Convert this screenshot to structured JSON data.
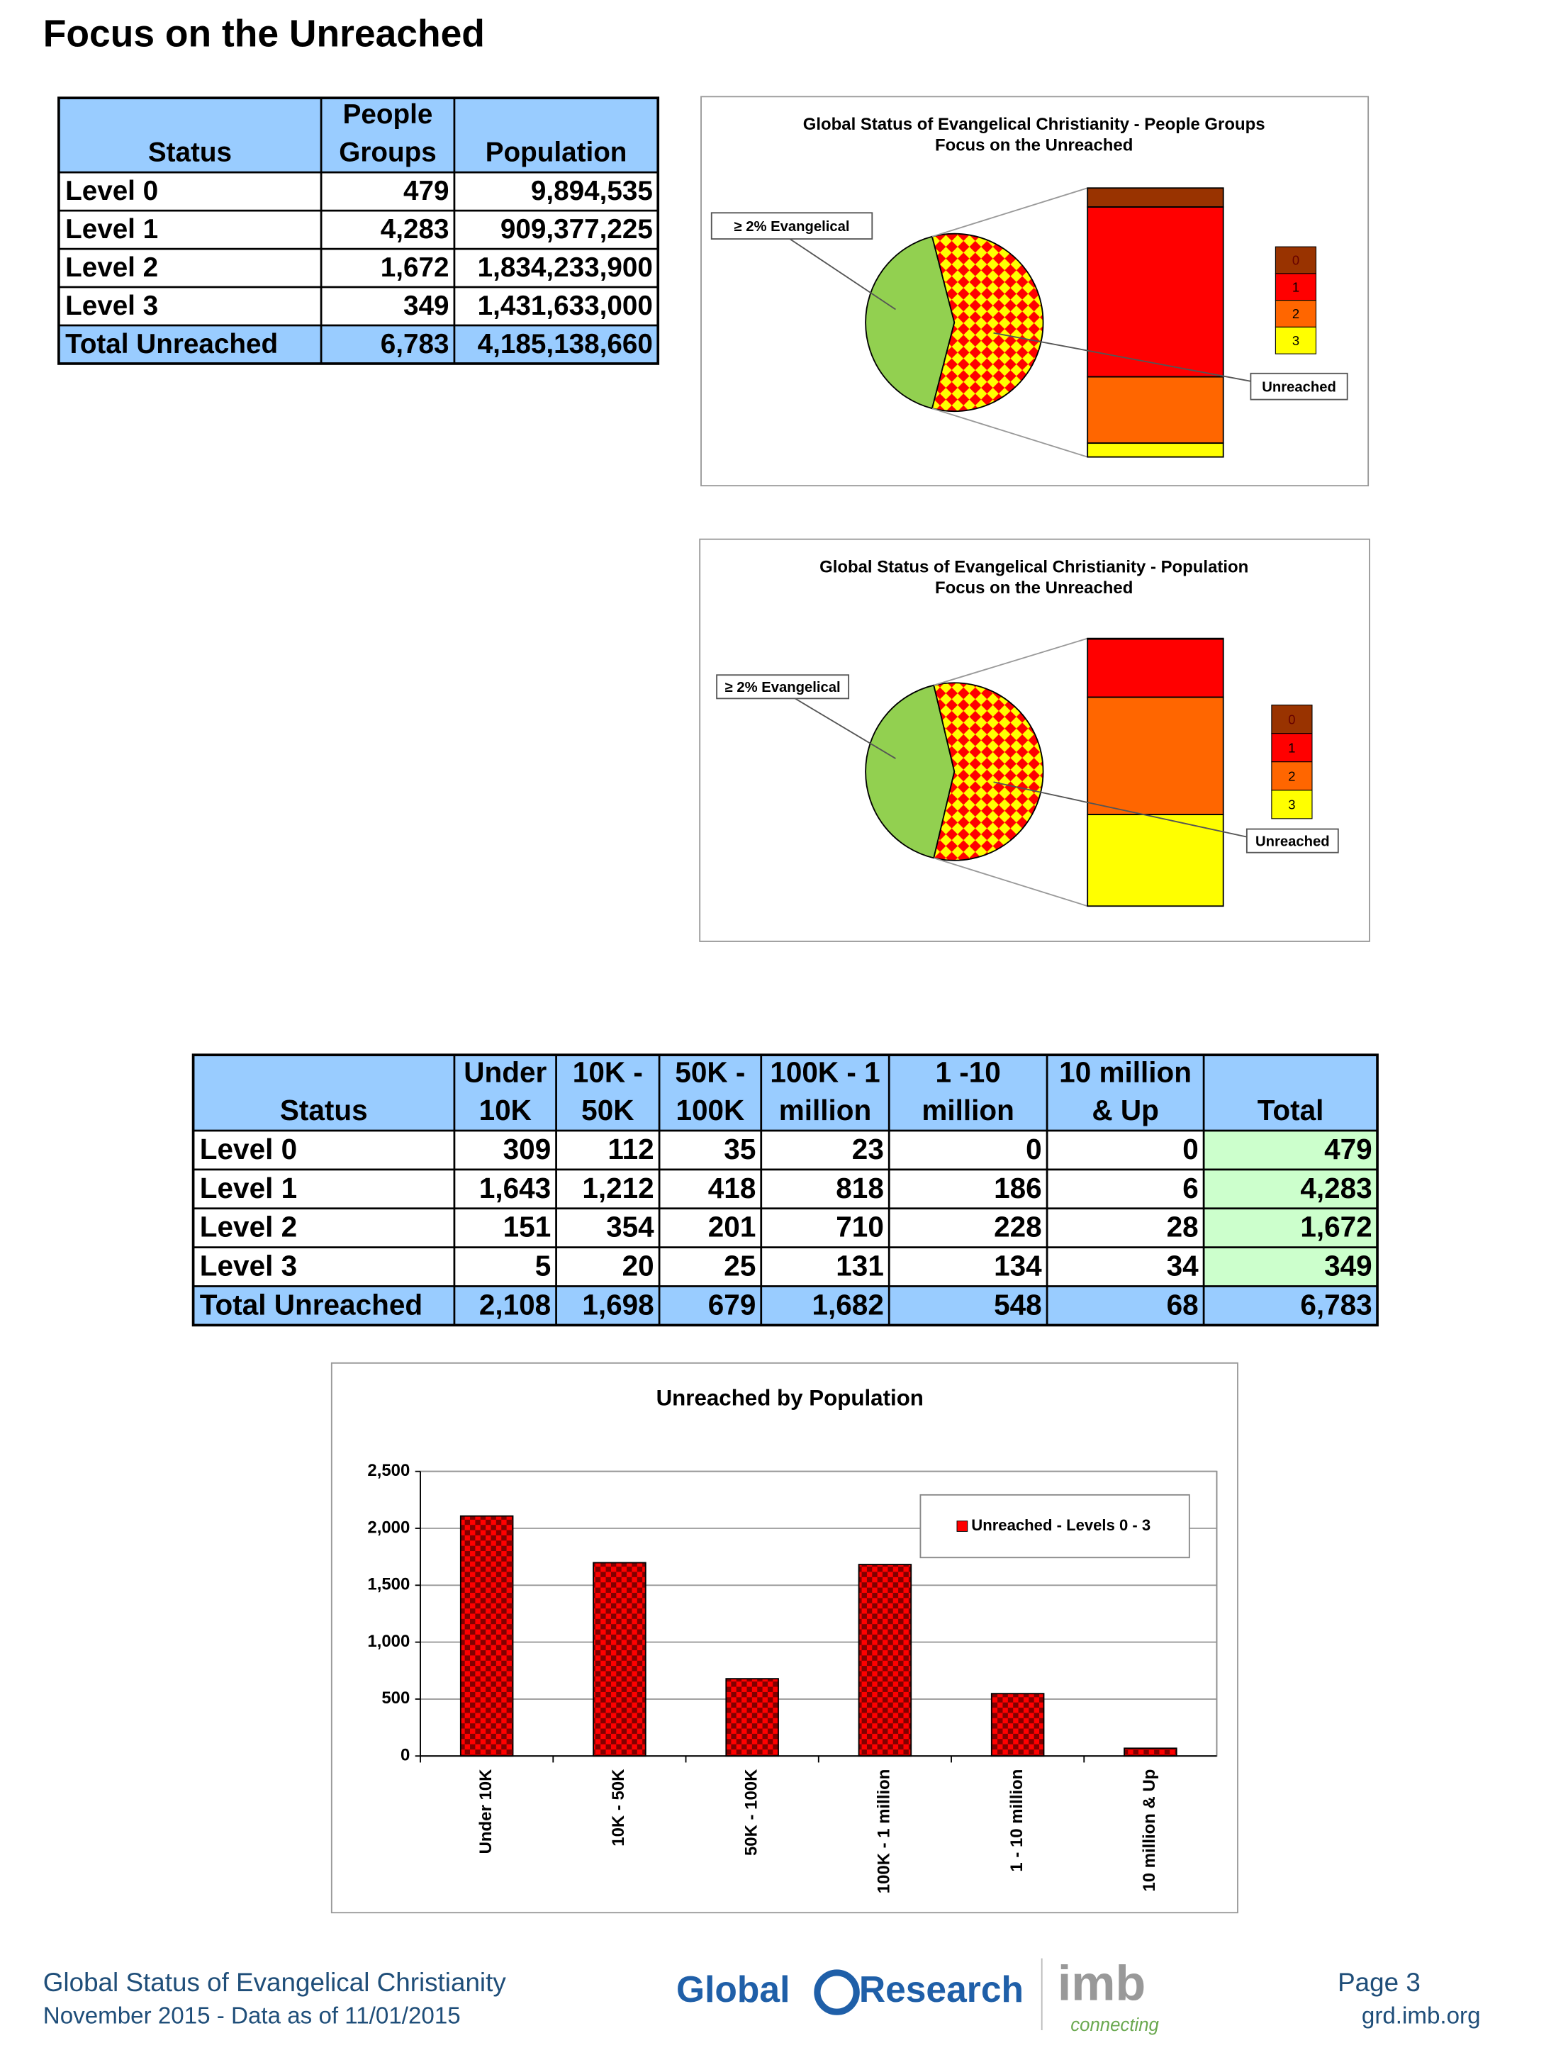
{
  "header": {
    "title": "Focus on the Unreached"
  },
  "table1": {
    "columns": [
      [
        "Status"
      ],
      [
        "People",
        "Groups"
      ],
      [
        "Population"
      ]
    ],
    "rows": [
      [
        "Level 0",
        "479",
        "9,894,535"
      ],
      [
        "Level 1",
        "4,283",
        "909,377,225"
      ],
      [
        "Level 2",
        "1,672",
        "1,834,233,900"
      ],
      [
        "Level 3",
        "349",
        "1,431,633,000"
      ],
      [
        "Total Unreached",
        "6,783",
        "4,185,138,660"
      ]
    ]
  },
  "table2": {
    "columns": [
      [
        "Status"
      ],
      [
        "Under",
        "10K"
      ],
      [
        "10K -",
        "50K"
      ],
      [
        "50K -",
        "100K"
      ],
      [
        "100K - 1",
        "million"
      ],
      [
        "1 -10",
        "million"
      ],
      [
        "10 million",
        "& Up"
      ],
      [
        "Total"
      ]
    ],
    "rows": [
      [
        "Level 0",
        "309",
        "112",
        "35",
        "23",
        "0",
        "0",
        "479"
      ],
      [
        "Level 1",
        "1,643",
        "1,212",
        "418",
        "818",
        "186",
        "6",
        "4,283"
      ],
      [
        "Level 2",
        "151",
        "354",
        "201",
        "710",
        "228",
        "28",
        "1,672"
      ],
      [
        "Level 3",
        "5",
        "20",
        "25",
        "131",
        "134",
        "34",
        "349"
      ],
      [
        "Total Unreached",
        "2,108",
        "1,698",
        "679",
        "1,682",
        "548",
        "68",
        "6,783"
      ]
    ]
  },
  "chart_data": [
    {
      "type": "pie-of-bar",
      "title": "Global Status of Evangelical Christianity - People Groups",
      "subtitle": "Focus on the Unreached",
      "slices": [
        {
          "name": "≥ 2% Evangelical",
          "value": 4900,
          "color": "#92d050"
        },
        {
          "name": "Unreached",
          "value": 6783,
          "color": "#ff0000"
        }
      ],
      "categories": [
        "0",
        "1",
        "2",
        "3"
      ],
      "values": [
        479,
        4283,
        1672,
        349
      ],
      "colors": [
        "#993300",
        "#ff0000",
        "#ff6600",
        "#ffff00"
      ]
    },
    {
      "type": "pie-of-bar",
      "title": "Global Status of Evangelical Christianity - Population",
      "subtitle": "Focus on the Unreached",
      "slices": [
        {
          "name": "≥ 2% Evangelical",
          "value": 3100000000,
          "color": "#92d050"
        },
        {
          "name": "Unreached",
          "value": 4185138660,
          "color": "#ff0000"
        }
      ],
      "categories": [
        "0",
        "1",
        "2",
        "3"
      ],
      "values": [
        9894535,
        909377225,
        1834233900,
        1431633000
      ],
      "colors": [
        "#993300",
        "#ff0000",
        "#ff6600",
        "#ffff00"
      ]
    },
    {
      "type": "bar",
      "title": "Unreached by Population",
      "categories": [
        "Under 10K",
        "10K - 50K",
        "50K - 100K",
        "100K - 1 million",
        "1 - 10 million",
        "10 million & Up"
      ],
      "series": [
        {
          "name": "Unreached - Levels 0 - 3",
          "color": "#ff0000",
          "values": [
            2108,
            1698,
            679,
            1682,
            548,
            68
          ]
        }
      ],
      "ylim": [
        0,
        2500
      ],
      "yticks": [
        0,
        500,
        {
          "value": 1000,
          "label": "1,000"
        },
        {
          "value": 1500,
          "label": "1,500"
        },
        {
          "value": 2000,
          "label": "2,000"
        },
        {
          "value": 2500,
          "label": "2,500"
        }
      ],
      "grid": true
    }
  ],
  "footer": {
    "left": [
      "Global Status of Evangelical Christianity",
      "November 2015 - Data as of 11/01/2015"
    ],
    "logo": [
      "Global",
      "Research",
      "imb",
      "connecting"
    ],
    "page": "Page 3",
    "url": "grd.imb.org"
  }
}
